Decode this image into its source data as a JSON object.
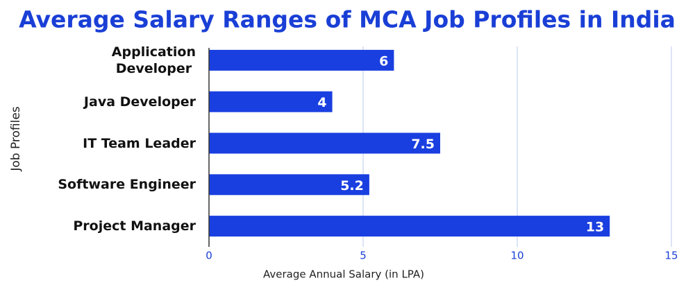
{
  "chart_data": {
    "type": "bar",
    "orientation": "horizontal",
    "title": "Average Salary Ranges of MCA Job Profiles in India",
    "x_label": "Average Annual Salary (in LPA)",
    "y_label": "Job Profiles",
    "categories": [
      "Application\nDeveloper",
      "Java Developer",
      "IT Team Leader",
      "Software Engineer",
      "Project Manager"
    ],
    "values": [
      6,
      4,
      7.5,
      5.2,
      13
    ],
    "color": "#1a3fe0",
    "xlim": [
      0,
      15
    ],
    "xticks": [
      0,
      5,
      10,
      15
    ],
    "grid": true
  }
}
